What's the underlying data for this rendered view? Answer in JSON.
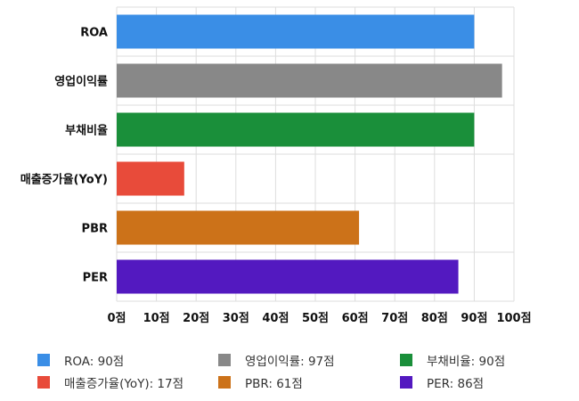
{
  "chart_data": {
    "type": "bar",
    "orientation": "horizontal",
    "categories": [
      "ROA",
      "영업이익률",
      "부채비율",
      "매출증가율(YoY)",
      "PBR",
      "PER"
    ],
    "values": [
      90,
      97,
      90,
      17,
      61,
      86
    ],
    "colors": [
      "#3a8ee6",
      "#888888",
      "#1a8f3a",
      "#e84b3a",
      "#cc7219",
      "#5319c0"
    ],
    "xlim": [
      0,
      100
    ],
    "xticks": [
      "0점",
      "10점",
      "20점",
      "30점",
      "40점",
      "50점",
      "60점",
      "70점",
      "80점",
      "90점",
      "100점"
    ],
    "grid": true,
    "legend_placement": "bottom",
    "legend": [
      "ROA: 90점",
      "영업이익률: 97점",
      "부채비율: 90점",
      "매출증가율(YoY): 17점",
      "PBR: 61점",
      "PER: 86점"
    ]
  }
}
